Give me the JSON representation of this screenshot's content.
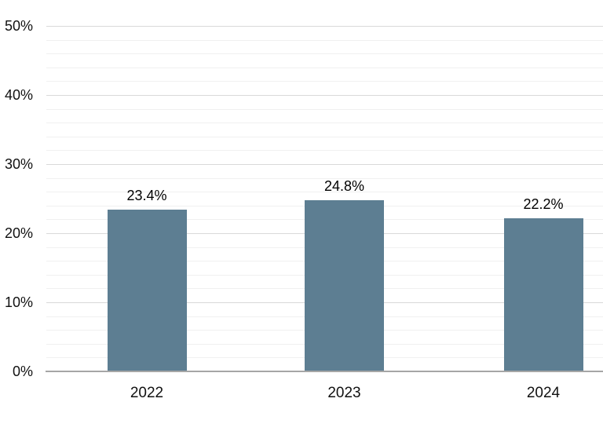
{
  "chart_data": {
    "type": "bar",
    "title": "",
    "categories": [
      "2022",
      "2023",
      "2024"
    ],
    "values": [
      23.4,
      24.8,
      22.2
    ],
    "data_labels": [
      "23.4%",
      "24.8%",
      "22.2%"
    ],
    "y_tick_labels": [
      "0%",
      "10%",
      "20%",
      "30%",
      "40%",
      "50%"
    ],
    "ylabel": "",
    "xlabel": "",
    "ylim": [
      0,
      50
    ],
    "major_tick_step": 10,
    "minor_gridline_step": 2,
    "grid": "on",
    "legend": "none",
    "colors": {
      "bar": "#5d7e92",
      "major_gridline": "#d9d9d9",
      "minor_gridline": "#f0f0f0",
      "axis_line": "#a6a6a6",
      "label_text": "#111111",
      "background": "#ffffff"
    }
  }
}
